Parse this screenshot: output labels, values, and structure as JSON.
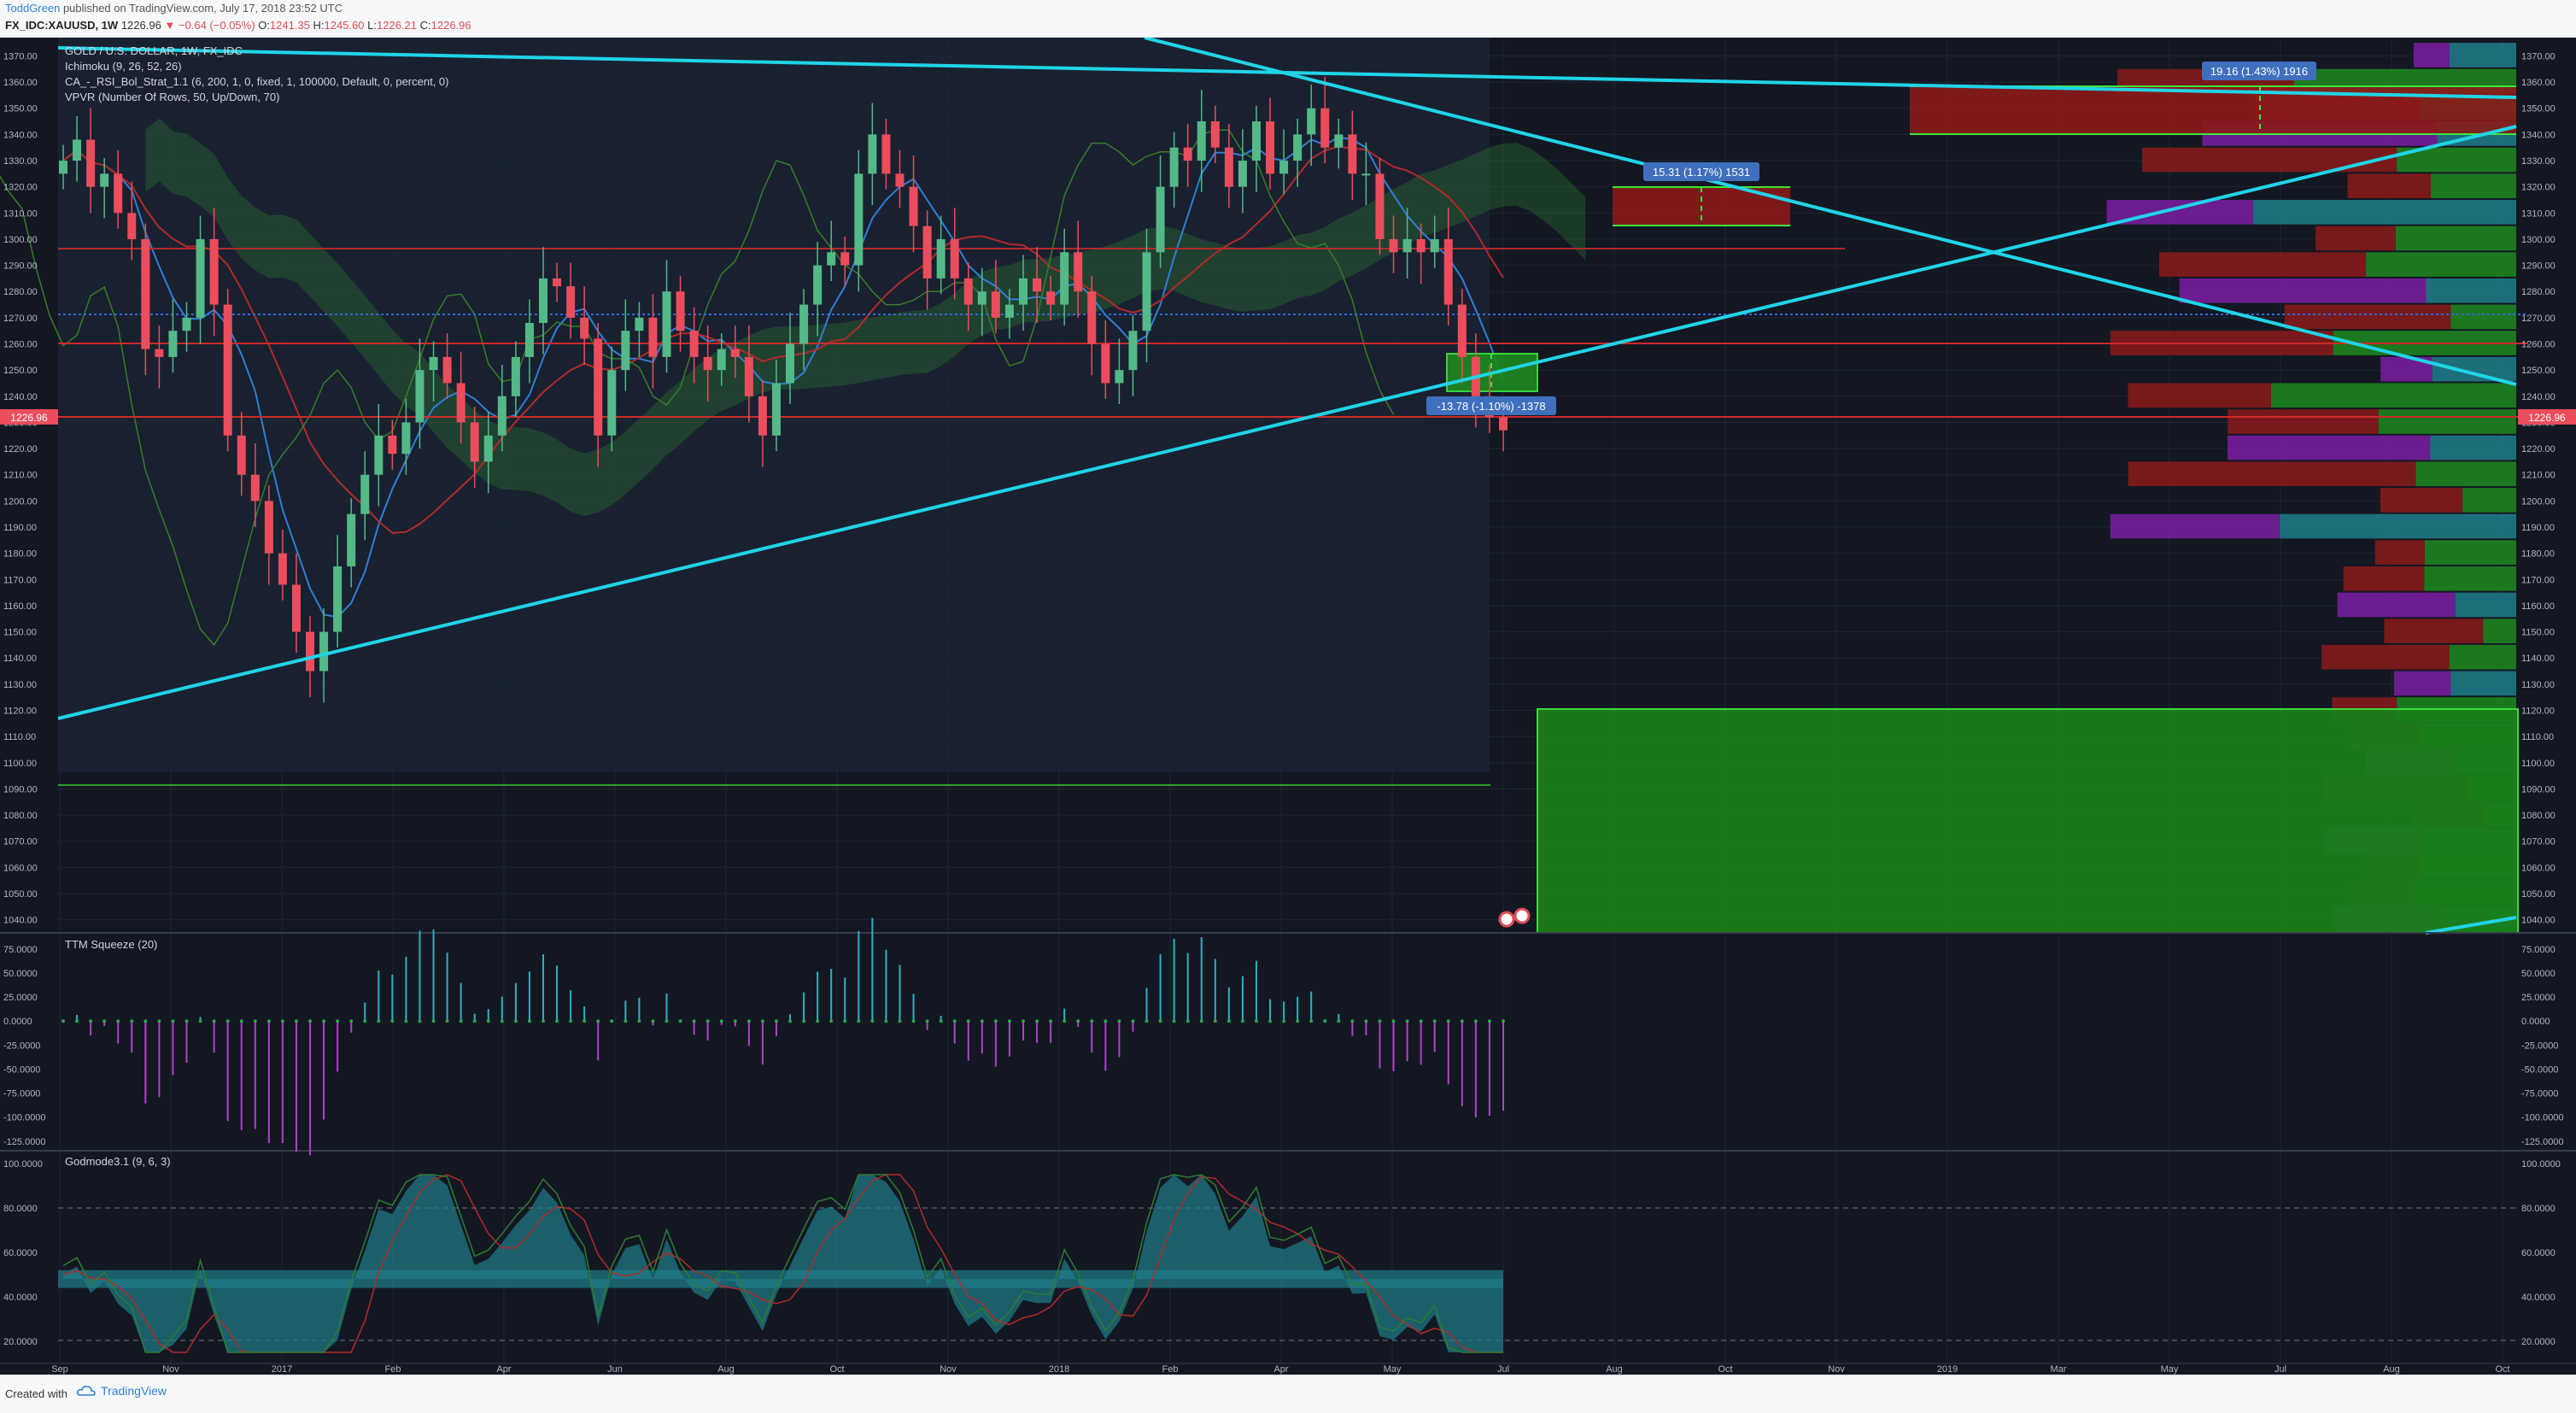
{
  "header": {
    "author": "ToddGreen",
    "published_text": "published on TradingView.com, July 17, 2018 23:52 UTC",
    "symbol": "FX_IDC:XAUUSD, 1W",
    "last_price": "1226.96",
    "change_arrow": "▼",
    "change": "−0.64 (−0.05%)",
    "o_label": "O:",
    "o_value": "1241.35",
    "h_label": "H:",
    "h_value": "1245.60",
    "l_label": "L:",
    "l_value": "1226.21",
    "c_label": "C:",
    "c_value": "1226.96"
  },
  "legend": {
    "title": "GOLD / U.S. DOLLAR, 1W, FX_IDC",
    "indicator_1": "Ichimoku (9, 26, 52, 26)",
    "indicator_2": "CA_-_RSI_Bol_Strat_1.1 (6, 200, 1, 0, fixed, 1, 100000, Default, 0, percent, 0)",
    "indicator_3": "VPVR (Number Of Rows, 50, Up/Down, 70)"
  },
  "labels": {
    "target_1": "19.16 (1.43%) 1916",
    "target_2": "15.31 (1.17%) 1531",
    "target_3": "-13.78 (-1.10%) -1378",
    "price_tag_left": "1226.96",
    "price_tag_right": "1226.96"
  },
  "ttm": {
    "title": "TTM Squeeze (20)"
  },
  "godmode": {
    "title": "Godmode3.1 (9, 6, 3)"
  },
  "footer": {
    "created_with": "Created with",
    "brand": "TradingView"
  },
  "colors": {
    "background": "#131722",
    "up": "#53b987",
    "down": "#eb4d5c",
    "trendline": "#21d4e8",
    "green_box": "#1f8a1f",
    "red_box": "#8b1a1a"
  },
  "chart_data": [
    {
      "type": "candlestick",
      "title": "GOLD / U.S. DOLLAR, 1W, FX_IDC",
      "price_axis": [
        "1370.00",
        "1360.00",
        "1350.00",
        "1340.00",
        "1330.00",
        "1320.00",
        "1310.00",
        "1300.00",
        "1290.00",
        "1280.00",
        "1270.00",
        "1260.00",
        "1250.00",
        "1240.00",
        "1230.00",
        "1220.00",
        "1210.00",
        "1200.00",
        "1190.00",
        "1180.00",
        "1170.00",
        "1160.00",
        "1150.00",
        "1140.00",
        "1130.00",
        "1120.00",
        "1110.00",
        "1100.00",
        "1090.00",
        "1080.00",
        "1070.00",
        "1060.00",
        "1050.00",
        "1040.00"
      ],
      "ylim": [
        1035,
        1377
      ],
      "time_axis": [
        "Sep",
        "Nov",
        "2017",
        "Feb",
        "Apr",
        "Jun",
        "Aug",
        "Oct",
        "Nov",
        "2018",
        "Feb",
        "Apr",
        "May",
        "Jul",
        "Aug",
        "Oct",
        "Nov",
        "2019",
        "Mar",
        "May",
        "Jul",
        "Aug",
        "Oct"
      ],
      "closes": [
        1330,
        1338,
        1320,
        1325,
        1310,
        1300,
        1258,
        1255,
        1265,
        1270,
        1300,
        1275,
        1225,
        1210,
        1200,
        1180,
        1168,
        1150,
        1135,
        1150,
        1175,
        1195,
        1210,
        1225,
        1218,
        1230,
        1250,
        1255,
        1245,
        1230,
        1215,
        1225,
        1240,
        1255,
        1268,
        1285,
        1282,
        1270,
        1262,
        1225,
        1250,
        1265,
        1270,
        1255,
        1280,
        1265,
        1255,
        1250,
        1258,
        1255,
        1240,
        1225,
        1245,
        1260,
        1275,
        1290,
        1295,
        1290,
        1325,
        1340,
        1325,
        1320,
        1305,
        1285,
        1300,
        1285,
        1275,
        1280,
        1270,
        1275,
        1285,
        1280,
        1275,
        1295,
        1280,
        1260,
        1245,
        1250,
        1265,
        1295,
        1320,
        1335,
        1330,
        1345,
        1335,
        1320,
        1330,
        1345,
        1325,
        1330,
        1340,
        1350,
        1335,
        1340,
        1325,
        1325,
        1300,
        1295,
        1300,
        1295,
        1300,
        1275,
        1255,
        1240,
        1232,
        1227
      ]
    },
    {
      "type": "bar",
      "title": "TTM Squeeze (20)",
      "y_axis": [
        "75.0000",
        "50.0000",
        "25.0000",
        "0.0000",
        "-25.0000",
        "-50.0000",
        "-75.0000",
        "-100.0000",
        "-125.0000"
      ],
      "ylim": [
        -135,
        90
      ]
    },
    {
      "type": "line",
      "title": "Godmode3.1 (9, 6, 3)",
      "y_axis": [
        "100.0000",
        "80.0000",
        "60.0000",
        "40.0000",
        "20.0000"
      ],
      "ylim": [
        10,
        105
      ]
    }
  ]
}
